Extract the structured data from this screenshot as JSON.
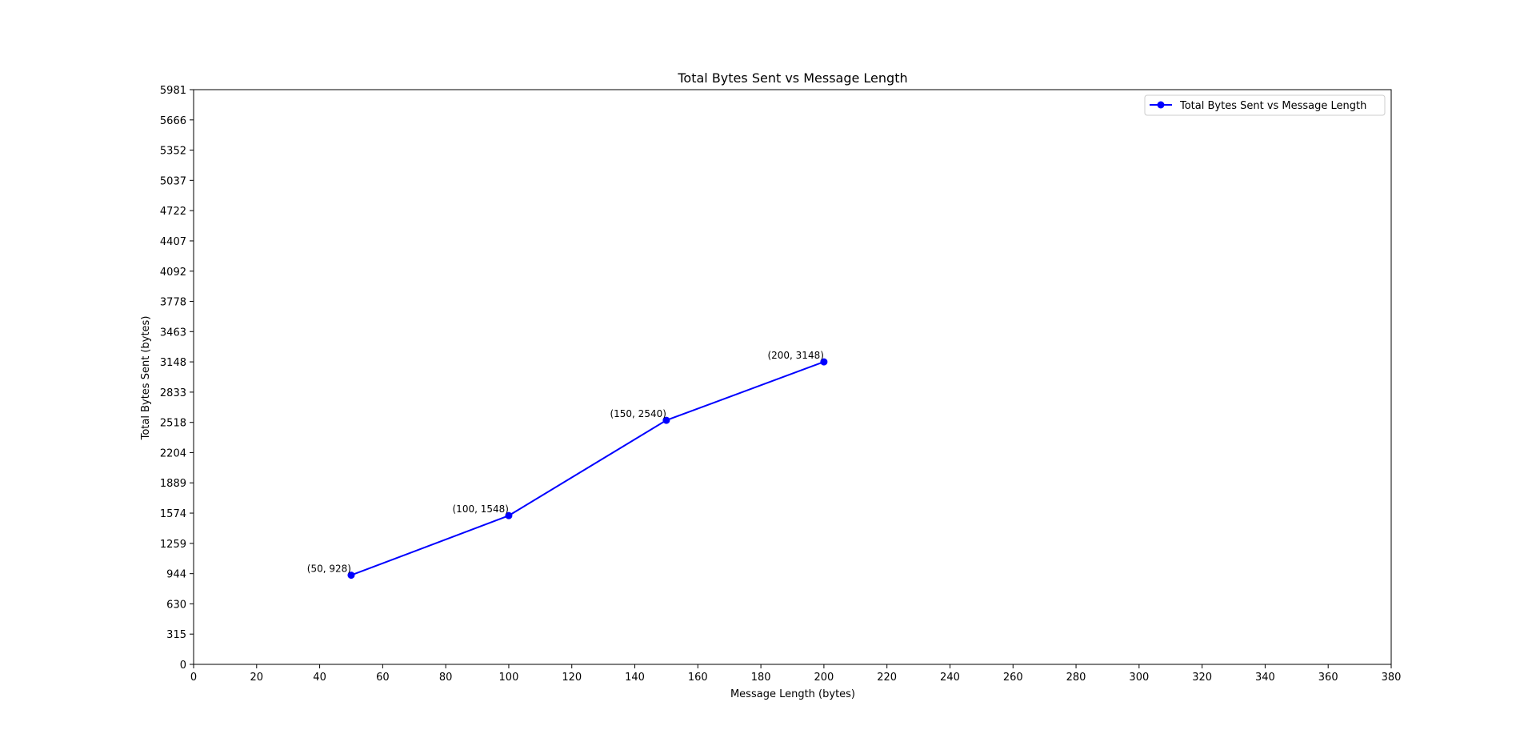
{
  "chart_data": {
    "type": "line",
    "title": "Total Bytes Sent vs Message Length",
    "xlabel": "Message Length (bytes)",
    "ylabel": "Total Bytes Sent (bytes)",
    "xlim": [
      0,
      380
    ],
    "ylim": [
      0,
      5981
    ],
    "x_ticks": [
      0,
      20,
      40,
      60,
      80,
      100,
      120,
      140,
      160,
      180,
      200,
      220,
      240,
      260,
      280,
      300,
      320,
      340,
      360,
      380
    ],
    "y_ticks": [
      0,
      315,
      630,
      944,
      1259,
      1574,
      1889,
      2204,
      2518,
      2833,
      3148,
      3463,
      3778,
      4092,
      4407,
      4722,
      5037,
      5352,
      5666,
      5981
    ],
    "grid": false,
    "legend": {
      "position": "top-right"
    },
    "series": [
      {
        "name": "Total Bytes Sent vs Message Length",
        "color": "#0000ff",
        "marker": "circle",
        "x": [
          50,
          100,
          150,
          200
        ],
        "y": [
          928,
          1548,
          2540,
          3148
        ],
        "labels": [
          "(50, 928)",
          "(100, 1548)",
          "(150, 2540)",
          "(200, 3148)"
        ]
      }
    ]
  }
}
